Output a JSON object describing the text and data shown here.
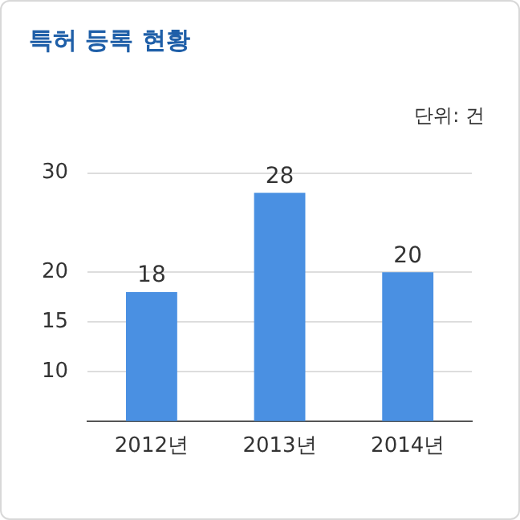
{
  "chart_data": {
    "type": "bar",
    "title": "특허 등록 현황",
    "annotations": [
      "단위: 건"
    ],
    "categories": [
      "2012년",
      "2013년",
      "2014년"
    ],
    "values": [
      18,
      28,
      20
    ],
    "color": "#4a90e2",
    "ylim": [
      5,
      30
    ],
    "yticks": [
      10,
      15,
      20,
      30
    ],
    "grid": "y",
    "data_labels": true,
    "legend": false
  }
}
